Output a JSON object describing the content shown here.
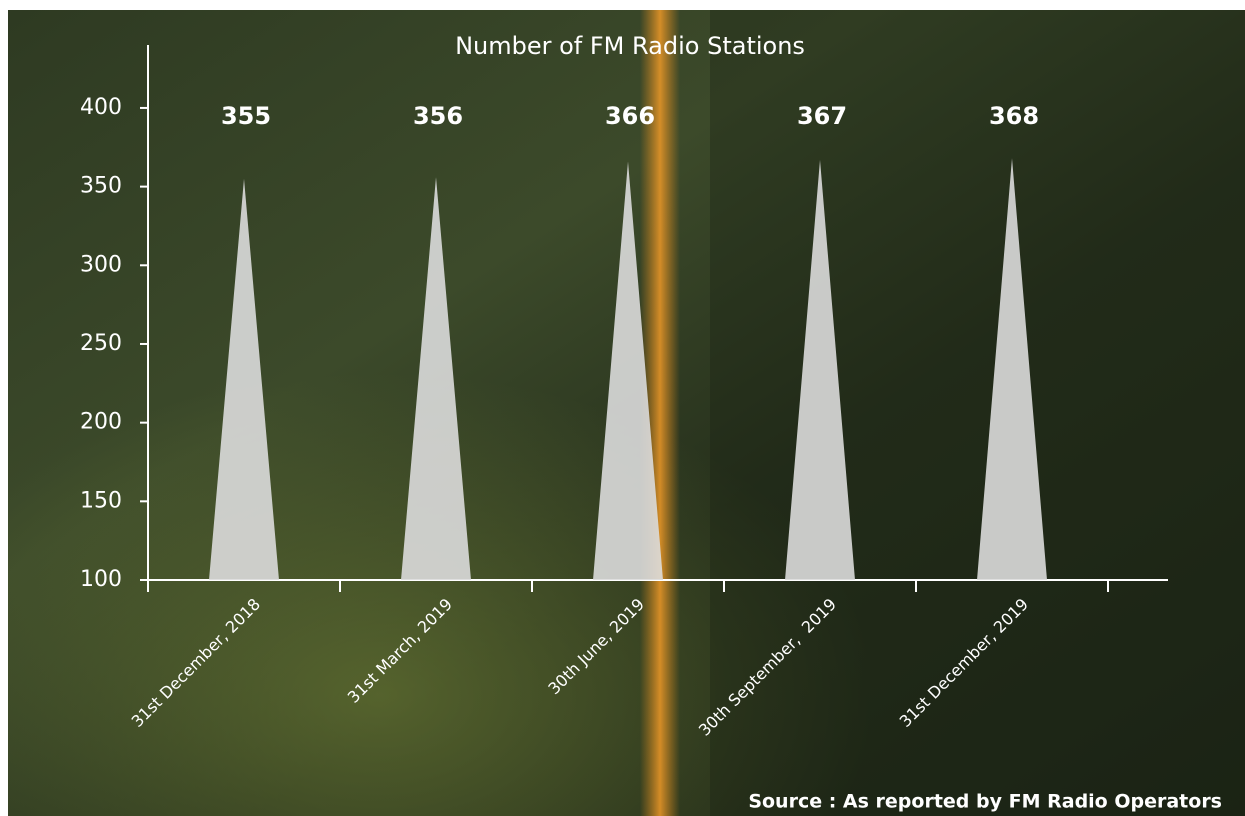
{
  "chart_data": {
    "type": "bar",
    "title": "Number of FM Radio Stations",
    "source": "Source : As reported by FM Radio Operators",
    "categories": [
      "31st December, 2018",
      "31st March, 2019",
      "30th June, 2019",
      "30th September,  2019",
      "31st December, 2019"
    ],
    "values": [
      355,
      356,
      366,
      367,
      368
    ],
    "color": "#dcdcdc",
    "ylim": [
      100,
      440
    ],
    "yticks": [
      100,
      150,
      200,
      250,
      300,
      350,
      400
    ],
    "grid": false
  }
}
